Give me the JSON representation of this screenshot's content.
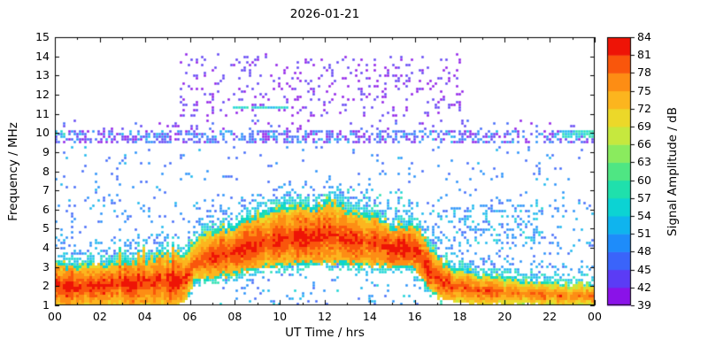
{
  "chart_data": {
    "type": "heatmap",
    "title": "2026-01-21",
    "xlabel": "UT Time / hrs",
    "ylabel": "Frequency / MHz",
    "xlim": [
      0,
      24
    ],
    "ylim": [
      1,
      15
    ],
    "clim": [
      39,
      84
    ],
    "x_ticks": {
      "values": [
        0,
        2,
        4,
        6,
        8,
        10,
        12,
        14,
        16,
        18,
        20,
        22,
        24
      ],
      "labels": [
        "00",
        "02",
        "04",
        "06",
        "08",
        "10",
        "12",
        "14",
        "16",
        "18",
        "20",
        "22",
        "00"
      ]
    },
    "y_ticks": {
      "values": [
        1,
        2,
        3,
        4,
        5,
        6,
        7,
        8,
        9,
        10,
        11,
        12,
        13,
        14,
        15
      ],
      "labels": [
        "1",
        "2",
        "3",
        "4",
        "5",
        "6",
        "7",
        "8",
        "9",
        "10",
        "11",
        "12",
        "13",
        "14",
        "15"
      ]
    },
    "colorbar": {
      "label": "Signal Amplitude / dB",
      "min": 39,
      "max": 84,
      "tick_step": 3,
      "tick_values": [
        39,
        42,
        45,
        48,
        51,
        54,
        57,
        60,
        63,
        66,
        69,
        72,
        75,
        78,
        81,
        84
      ],
      "colors": [
        "#8a12e8",
        "#5b3cf5",
        "#3a64fa",
        "#1e8cfa",
        "#0fb4ee",
        "#0cd3d3",
        "#1fe0ac",
        "#4fe683",
        "#8aeb5e",
        "#c6e83e",
        "#ecd829",
        "#fcb51e",
        "#fd8d14",
        "#f9560c",
        "#ee1406"
      ]
    },
    "features": [
      {
        "name": "background-scatter",
        "type": "speckle",
        "t": [
          0,
          24
        ],
        "f": [
          1.0,
          9.3
        ],
        "density": 0.04,
        "amp": [
          45,
          52
        ]
      },
      {
        "name": "low-mid-scatter",
        "type": "speckle",
        "t": [
          0,
          24
        ],
        "f": [
          2.8,
          6.6
        ],
        "density": 0.05,
        "amp": [
          46,
          53
        ]
      },
      {
        "name": "below-day-band-scatter",
        "type": "speckle",
        "t": [
          6.8,
          16.2
        ],
        "f": [
          1.0,
          2.7
        ],
        "density": 0.05,
        "amp": [
          47,
          55
        ]
      },
      {
        "name": "evening-cluster",
        "type": "speckle",
        "t": [
          16.8,
          21.8
        ],
        "f": [
          4.2,
          6.2
        ],
        "density": 0.2,
        "amp": [
          46,
          56
        ]
      },
      {
        "name": "midday-above-band",
        "type": "speckle",
        "t": [
          12.3,
          16.2
        ],
        "f": [
          5.9,
          7.1
        ],
        "density": 0.15,
        "amp": [
          49,
          58
        ]
      },
      {
        "name": "band-9-10-mhz",
        "type": "speckle",
        "t": [
          0,
          24
        ],
        "f": [
          9.4,
          10.2
        ],
        "density": 0.5,
        "amp": [
          39,
          52
        ]
      },
      {
        "name": "band-9-10-right-cyan",
        "type": "speckle",
        "t": [
          22.6,
          24
        ],
        "f": [
          9.7,
          10.15
        ],
        "density": 0.85,
        "amp": [
          53,
          60
        ]
      },
      {
        "name": "band-9-10-left-cyan",
        "type": "speckle",
        "t": [
          0,
          0.5
        ],
        "f": [
          9.7,
          10.1
        ],
        "density": 0.6,
        "amp": [
          51,
          58
        ]
      },
      {
        "name": "band-10-5-mhz",
        "type": "speckle",
        "t": [
          0,
          24
        ],
        "f": [
          10.2,
          10.7
        ],
        "density": 0.07,
        "amp": [
          39,
          47
        ]
      },
      {
        "name": "sporadic-purple-11-14-mhz",
        "type": "speckle",
        "t": [
          5.6,
          18.2
        ],
        "f": [
          10.8,
          14.2
        ],
        "density": 0.13,
        "amp": [
          39,
          45
        ]
      },
      {
        "name": "cyan-line-11-3-mhz",
        "type": "speckle",
        "t": [
          7.9,
          10.4
        ],
        "f": [
          11.2,
          11.45
        ],
        "density": 0.9,
        "amp": [
          53,
          58
        ]
      },
      {
        "name": "main-ionospheric-trace",
        "type": "band",
        "top": [
          [
            0,
            3.25
          ],
          [
            1,
            3.15
          ],
          [
            2,
            3.2
          ],
          [
            3,
            3.35
          ],
          [
            4,
            3.45
          ],
          [
            4.8,
            3.7
          ],
          [
            5.3,
            3.6
          ],
          [
            5.7,
            3.5
          ],
          [
            6.0,
            4.2
          ],
          [
            6.4,
            4.7
          ],
          [
            7.0,
            4.95
          ],
          [
            7.5,
            5.1
          ],
          [
            8.0,
            5.3
          ],
          [
            8.5,
            5.55
          ],
          [
            9.0,
            5.8
          ],
          [
            9.5,
            6.0
          ],
          [
            10.0,
            6.1
          ],
          [
            10.5,
            6.35
          ],
          [
            11.0,
            6.3
          ],
          [
            11.5,
            6.15
          ],
          [
            12.0,
            6.45
          ],
          [
            12.3,
            6.55
          ],
          [
            12.7,
            6.3
          ],
          [
            13.0,
            6.1
          ],
          [
            13.3,
            5.9
          ],
          [
            13.8,
            5.75
          ],
          [
            14.2,
            5.95
          ],
          [
            14.6,
            5.5
          ],
          [
            15.0,
            5.15
          ],
          [
            15.4,
            5.25
          ],
          [
            15.8,
            5.3
          ],
          [
            16.1,
            5.15
          ],
          [
            16.4,
            4.7
          ],
          [
            16.7,
            4.1
          ],
          [
            17.0,
            3.6
          ],
          [
            17.5,
            3.15
          ],
          [
            18.0,
            2.9
          ],
          [
            18.5,
            2.75
          ],
          [
            19.0,
            2.6
          ],
          [
            19.5,
            2.55
          ],
          [
            20.0,
            2.45
          ],
          [
            20.5,
            2.4
          ],
          [
            21.0,
            2.3
          ],
          [
            21.5,
            2.25
          ],
          [
            22.0,
            2.2
          ],
          [
            22.5,
            2.15
          ],
          [
            23.0,
            2.1
          ],
          [
            23.5,
            2.1
          ],
          [
            24.0,
            2.15
          ]
        ],
        "bottom": [
          [
            0,
            1.0
          ],
          [
            5.5,
            1.0
          ],
          [
            5.9,
            1.35
          ],
          [
            6.2,
            2.1
          ],
          [
            6.6,
            2.3
          ],
          [
            7.0,
            2.4
          ],
          [
            7.5,
            2.5
          ],
          [
            8.0,
            2.6
          ],
          [
            8.5,
            2.75
          ],
          [
            9.0,
            2.85
          ],
          [
            9.5,
            2.95
          ],
          [
            10.0,
            3.0
          ],
          [
            11.0,
            3.1
          ],
          [
            12.0,
            3.15
          ],
          [
            13.0,
            3.1
          ],
          [
            14.0,
            3.0
          ],
          [
            15.0,
            2.95
          ],
          [
            15.8,
            2.9
          ],
          [
            16.2,
            2.6
          ],
          [
            16.5,
            2.1
          ],
          [
            16.8,
            1.6
          ],
          [
            17.2,
            1.3
          ],
          [
            17.8,
            1.15
          ],
          [
            19.0,
            1.05
          ],
          [
            24,
            1.0
          ]
        ],
        "core_amp_scale": [
          [
            0,
            1
          ],
          [
            5.5,
            1
          ],
          [
            6,
            0.95
          ],
          [
            8,
            1
          ],
          [
            16,
            1
          ],
          [
            18,
            0.95
          ],
          [
            20,
            0.88
          ],
          [
            22,
            0.82
          ],
          [
            24,
            0.8
          ]
        ],
        "spike": {
          "t": [
            2.8,
            5.7
          ],
          "prob": 0.3,
          "df": 0.8
        },
        "fringe_width": 0.4
      }
    ]
  }
}
